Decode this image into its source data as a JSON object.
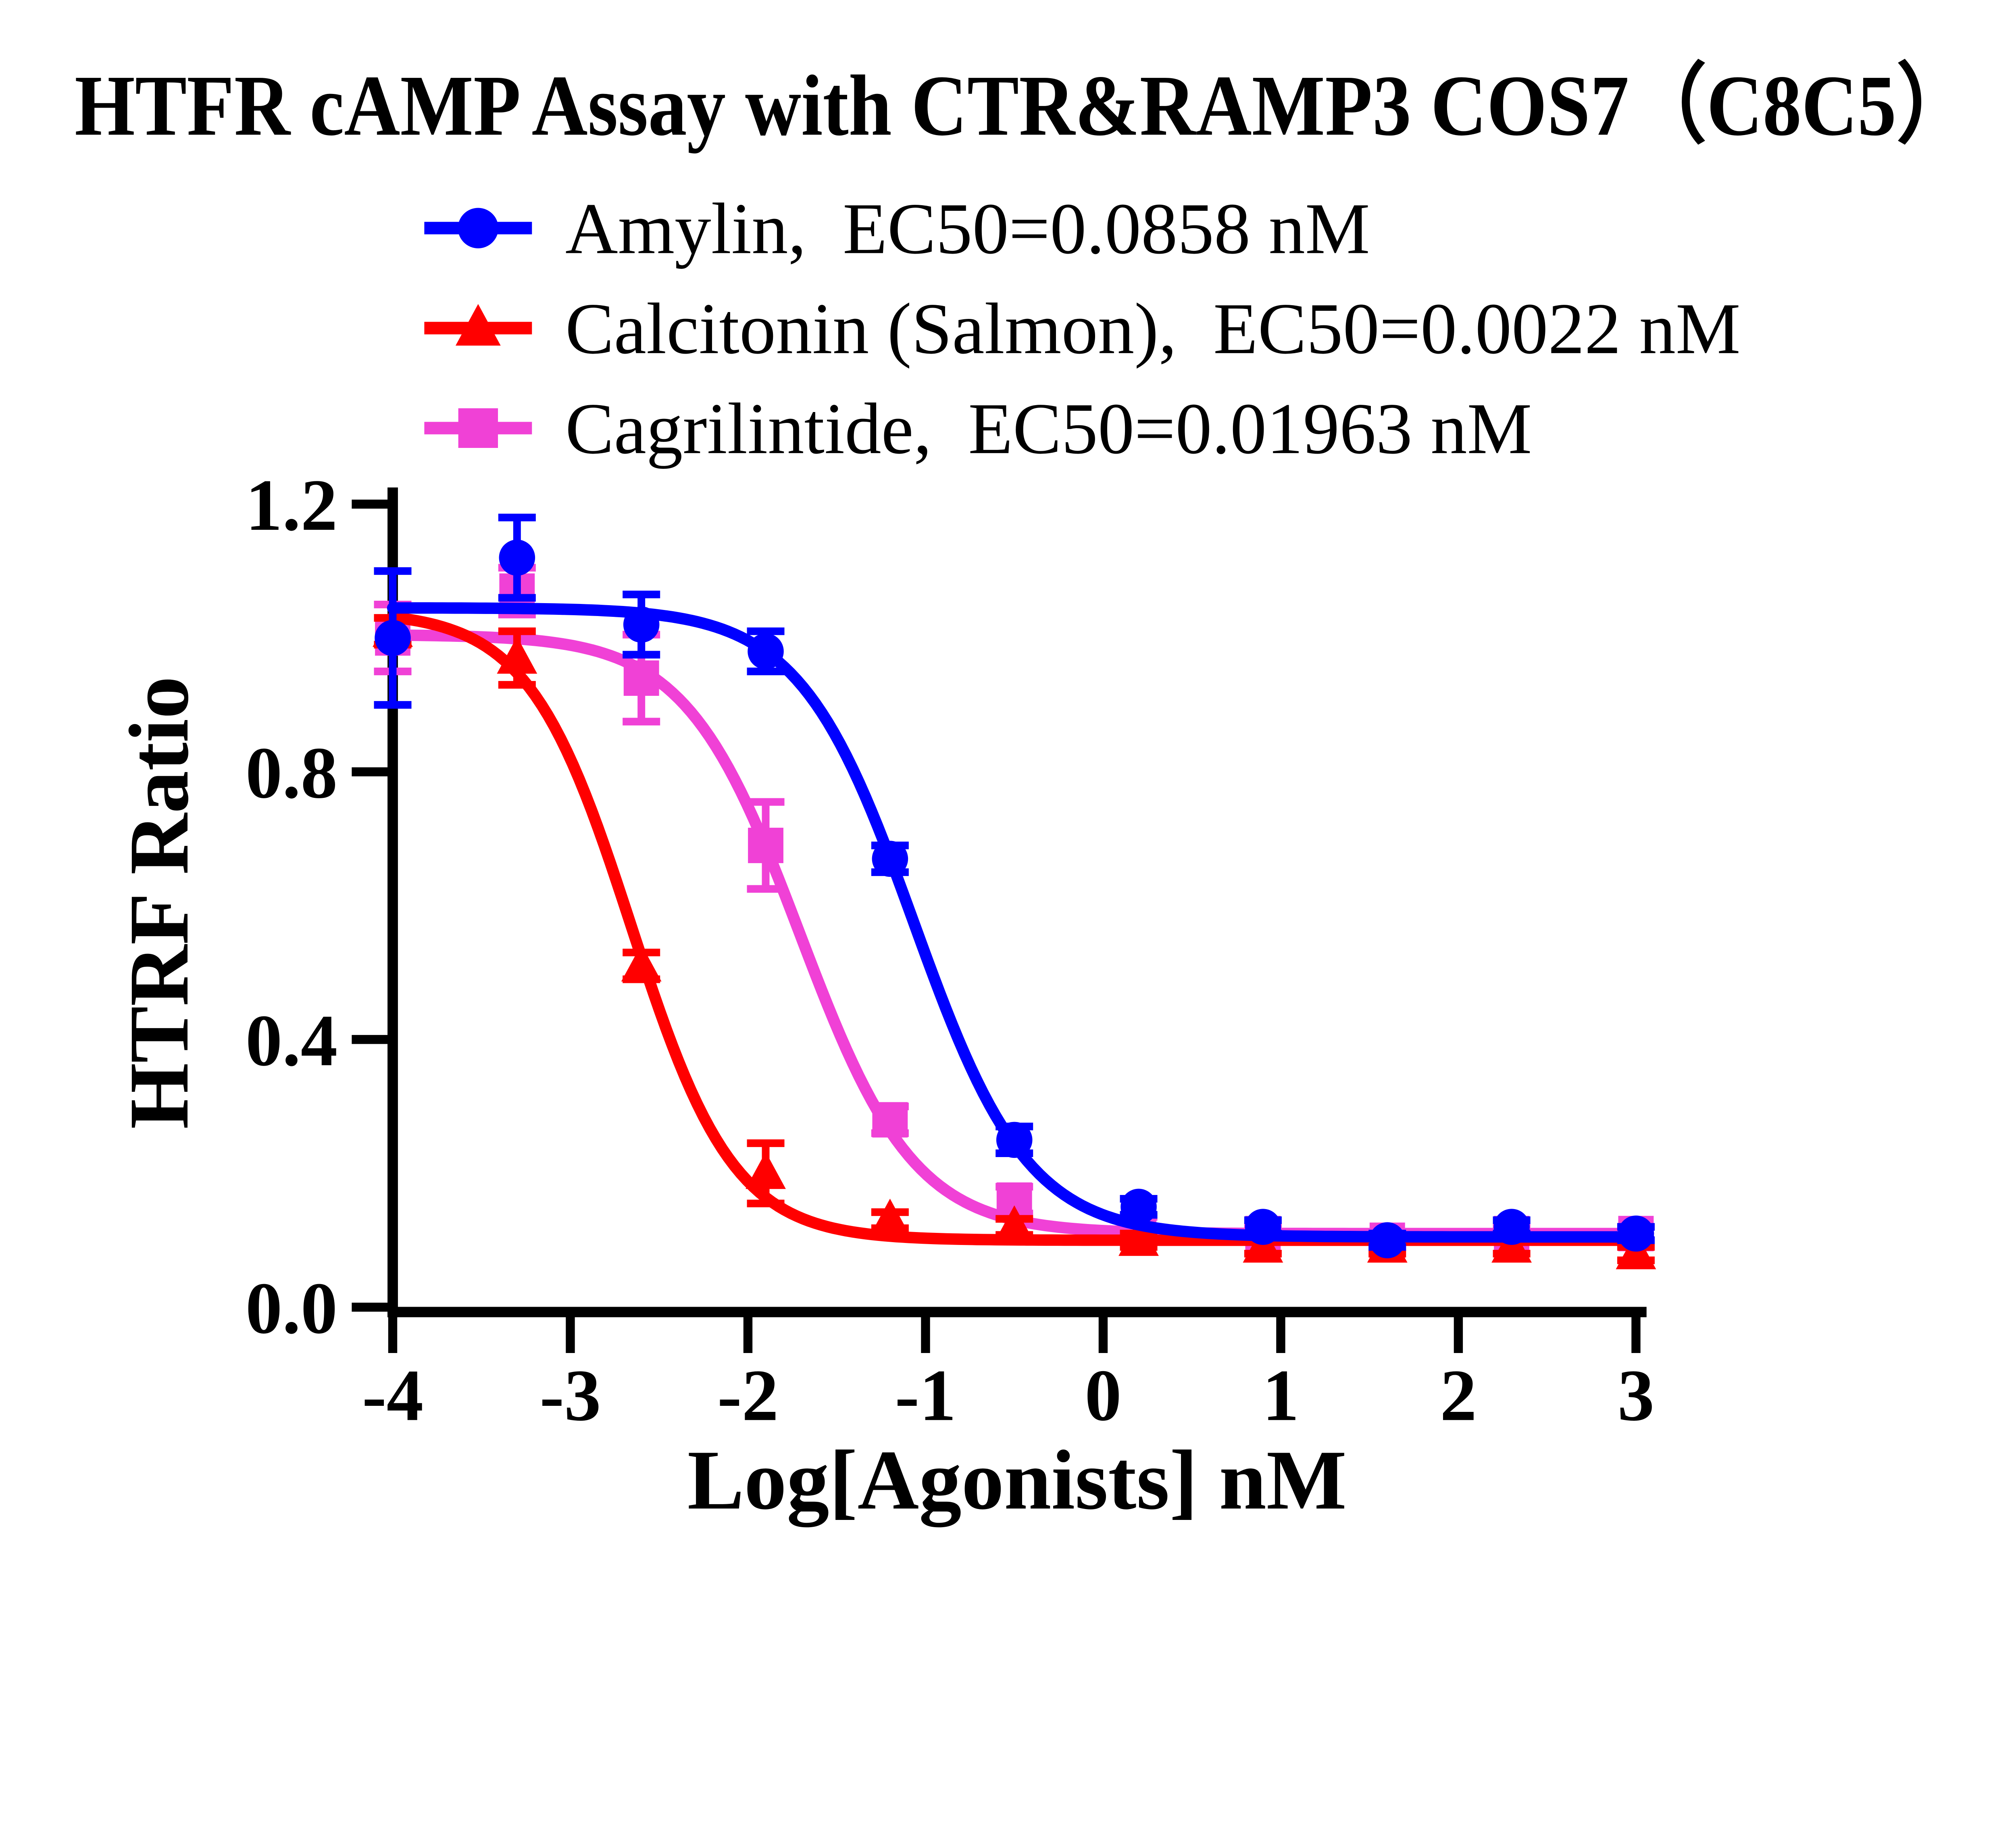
{
  "title": "HTFR cAMP Assay with CTR&RAMP3 COS7（C8C5）",
  "legend": {
    "items": [
      {
        "label": "Amylin,  EC50=0.0858 nM"
      },
      {
        "label": "Calcitonin (Salmon),  EC50=0.0022 nM"
      },
      {
        "label": "Cagrilintide,  EC50=0.01963 nM"
      }
    ]
  },
  "chart_data": {
    "type": "scatter",
    "title": "HTFR cAMP Assay with CTR&RAMP3 COS7（C8C5）",
    "xlabel": "Log[Agonists] nM",
    "ylabel": "HTRF Ratio",
    "xlim": [
      -4,
      3.07
    ],
    "ylim": [
      0,
      1.2
    ],
    "grid": false,
    "legend_position": "top-center",
    "x_ticks": [
      -4,
      -3,
      -2,
      -1,
      0,
      1,
      2,
      3
    ],
    "x_tick_labels": [
      "-4",
      "-3",
      "-2",
      "-1",
      "0",
      "1",
      "2",
      "3"
    ],
    "y_ticks": [
      0,
      0.4,
      0.8,
      1.2
    ],
    "y_tick_labels": [
      "0.0",
      "0.4",
      "0.8",
      "1.2"
    ],
    "x": [
      -4,
      -3.3,
      -2.6,
      -1.9,
      -1.2,
      -0.5,
      0.2,
      0.9,
      1.6,
      2.3,
      3
    ],
    "series": [
      {
        "name": "Amylin",
        "ec50_nM": 0.0858,
        "color": "#0000FF",
        "marker": "circle",
        "values": [
          1.0,
          1.12,
          1.02,
          0.98,
          0.67,
          0.25,
          0.15,
          0.12,
          0.1,
          0.12,
          0.11
        ],
        "errors": [
          0.1,
          0.06,
          0.045,
          0.03,
          0.02,
          0.02,
          0.012,
          0.01,
          0.01,
          0.01,
          0.01
        ],
        "fit": {
          "top": 1.045,
          "bottom": 0.105,
          "log_ec50": -1.0665,
          "hill": 1.35
        }
      },
      {
        "name": "Calcitonin (Salmon)",
        "ec50_nM": 0.0022,
        "color": "#FF0000",
        "marker": "triangle",
        "values": [
          1.01,
          0.97,
          0.51,
          0.2,
          0.13,
          0.12,
          0.1,
          0.09,
          0.09,
          0.09,
          0.08
        ],
        "errors": [
          0.02,
          0.04,
          0.02,
          0.045,
          0.012,
          0.012,
          0.01,
          0.01,
          0.01,
          0.01,
          0.01
        ],
        "fit": {
          "top": 1.04,
          "bottom": 0.1,
          "log_ec50": -2.6576,
          "hill": 1.5
        }
      },
      {
        "name": "Cagrilintide",
        "ec50_nM": 0.01963,
        "color": "#F041D6",
        "marker": "square",
        "values": [
          1.0,
          1.07,
          0.94,
          0.69,
          0.28,
          0.16,
          0.12,
          0.11,
          0.1,
          0.11,
          0.11
        ],
        "errors": [
          0.05,
          0.035,
          0.065,
          0.065,
          0.02,
          0.02,
          0.015,
          0.01,
          0.01,
          0.01,
          0.01
        ],
        "fit": {
          "top": 1.005,
          "bottom": 0.11,
          "log_ec50": -1.707,
          "hill": 1.35
        }
      }
    ]
  }
}
